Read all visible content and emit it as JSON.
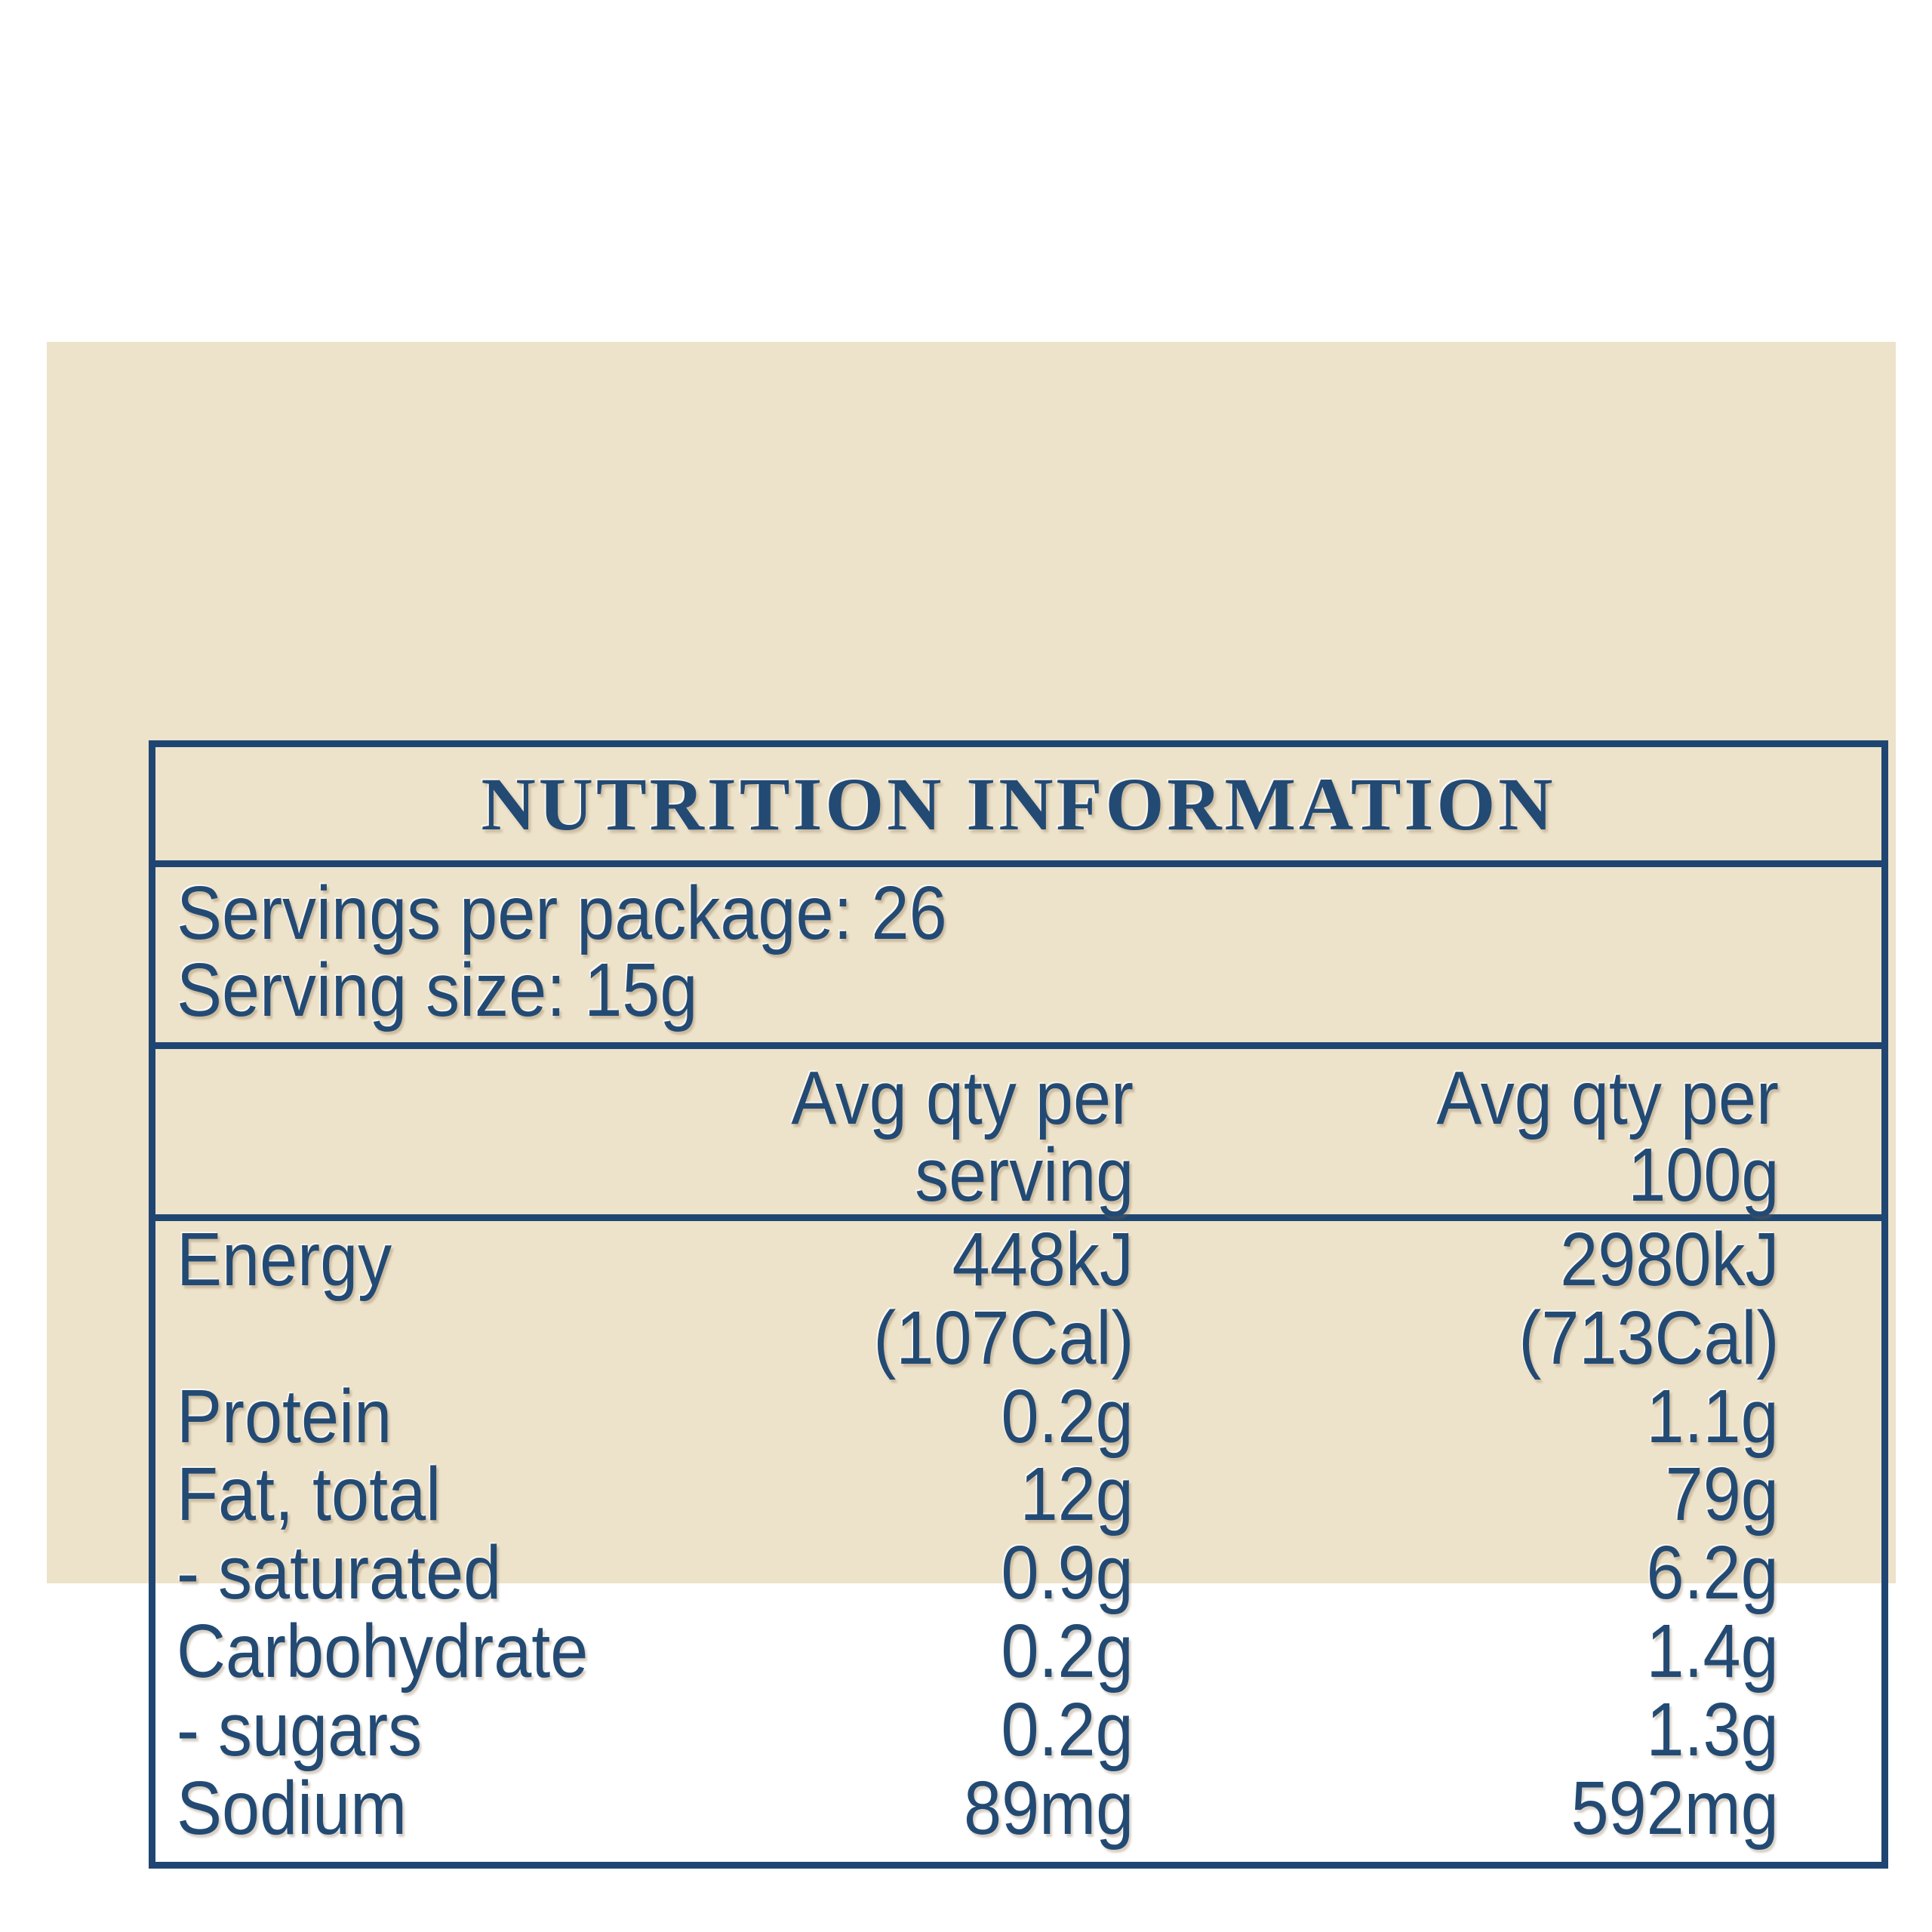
{
  "title": "NUTRITION INFORMATION",
  "serving_info": {
    "servings_per_package": "Servings per package: 26",
    "serving_size": "Serving size: 15g"
  },
  "columns": {
    "per_serving_line1": "Avg qty per",
    "per_serving_line2": "serving",
    "per_100g_line1": "Avg qty per",
    "per_100g_line2": "100g"
  },
  "rows": [
    {
      "label": "Energy",
      "per_serving": "448kJ",
      "per_100g": "2980kJ"
    },
    {
      "label": "",
      "per_serving": "(107Cal)",
      "per_100g": "(713Cal)"
    },
    {
      "label": "Protein",
      "per_serving": "0.2g",
      "per_100g": "1.1g"
    },
    {
      "label": "Fat, total",
      "per_serving": "12g",
      "per_100g": "79g"
    },
    {
      "label": "- saturated",
      "per_serving": "0.9g",
      "per_100g": "6.2g"
    },
    {
      "label": "Carbohydrate",
      "per_serving": "0.2g",
      "per_100g": "1.4g"
    },
    {
      "label": "- sugars",
      "per_serving": "0.2g",
      "per_100g": "1.3g"
    },
    {
      "label": "Sodium",
      "per_serving": "89mg",
      "per_100g": "592mg"
    }
  ],
  "colors": {
    "ink": "#234a73",
    "line": "#1f4672",
    "panel_background": "#ede2ca",
    "page_background": "#ffffff"
  }
}
